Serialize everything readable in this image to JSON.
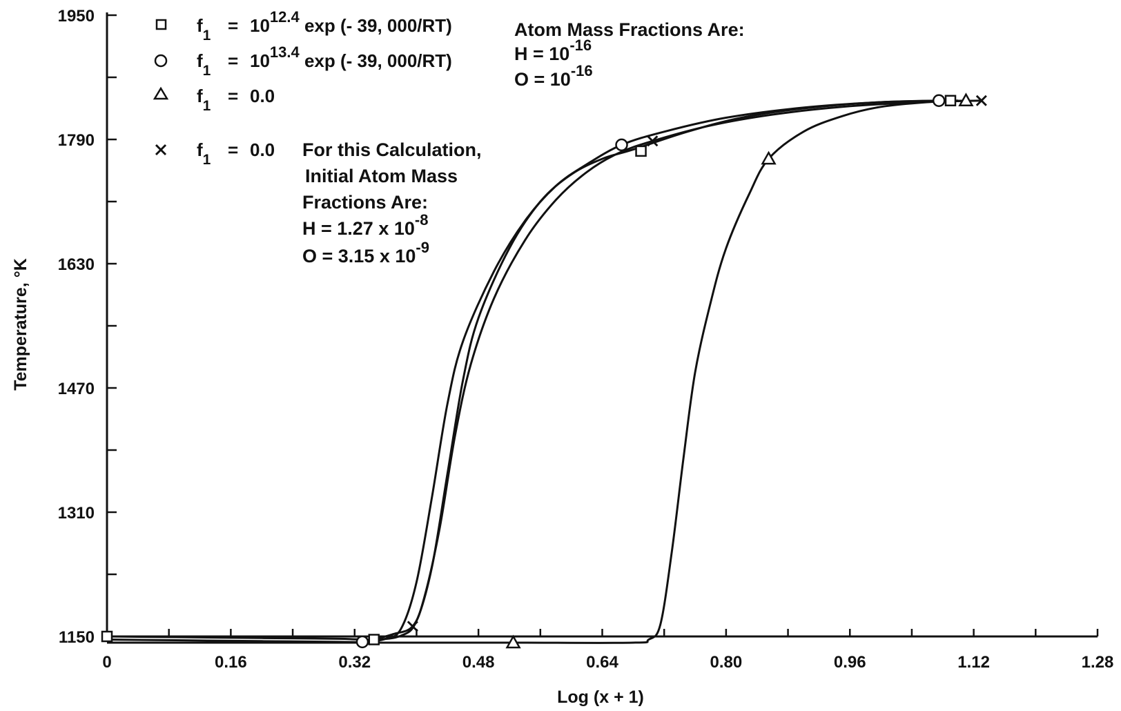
{
  "chart_data": {
    "type": "line",
    "xlabel": "Log (x + 1)",
    "ylabel": "Temperature, °K",
    "xlim": [
      0,
      1.28
    ],
    "ylim": [
      1150,
      1950
    ],
    "x_ticks": [
      0,
      0.16,
      0.32,
      0.48,
      0.64,
      0.8,
      0.96,
      1.12,
      1.28
    ],
    "x_tick_labels": [
      "0",
      "0.16",
      "0.32",
      "0.48",
      "0.64",
      "0.80",
      "0.96",
      "1.12",
      "1.28"
    ],
    "y_ticks": [
      1150,
      1310,
      1470,
      1630,
      1790,
      1950
    ],
    "y_tick_labels": [
      "1150",
      "1310",
      "1470",
      "1630",
      "1790",
      "1950"
    ],
    "y_minor_step": 80,
    "x_minor_step": 0.08,
    "grid": false,
    "legend": [
      {
        "marker": "square",
        "label": "f₁ = 10^12.4 exp (- 39, 000/RT)",
        "prefix": "f",
        "sub": "1",
        "eq": "=",
        "base": "10",
        "exp": "12.4",
        "tail": " exp (- 39, 000/RT)"
      },
      {
        "marker": "circle",
        "label": "f₁ = 10^13.4 exp (- 39, 000/RT)",
        "prefix": "f",
        "sub": "1",
        "eq": "=",
        "base": "10",
        "exp": "13.4",
        "tail": " exp (- 39, 000/RT)"
      },
      {
        "marker": "triangle",
        "label": "f₁ = 0.0",
        "prefix": "f",
        "sub": "1",
        "eq": "=",
        "base": "",
        "exp": "",
        "tail": "0.0"
      },
      {
        "marker": "x",
        "label": "f₁ = 0.0",
        "prefix": "f",
        "sub": "1",
        "eq": "=",
        "base": "",
        "exp": "",
        "tail": "0.0"
      }
    ],
    "note_calc": {
      "lines": [
        "For this Calculation,",
        "Initial Atom Mass",
        "Fractions Are:"
      ],
      "h_label": "H = 1.27 x 10",
      "h_exp": "-8",
      "o_label": "O = 3.15 x 10",
      "o_exp": "-9"
    },
    "note_atom": {
      "title": "Atom Mass Fractions Are:",
      "h_label": "H = 10",
      "h_exp": "-16",
      "o_label": "O = 10",
      "o_exp": "-16"
    },
    "series": [
      {
        "marker": "square",
        "points": [
          [
            0,
            1150
          ],
          [
            0.1,
            1149
          ],
          [
            0.2,
            1148
          ],
          [
            0.3,
            1147
          ],
          [
            0.345,
            1146
          ],
          [
            0.38,
            1151
          ],
          [
            0.4,
            1170
          ],
          [
            0.42,
            1240
          ],
          [
            0.44,
            1360
          ],
          [
            0.46,
            1480
          ],
          [
            0.48,
            1560
          ],
          [
            0.52,
            1650
          ],
          [
            0.56,
            1710
          ],
          [
            0.6,
            1745
          ],
          [
            0.64,
            1765
          ],
          [
            0.68,
            1777
          ],
          [
            0.75,
            1800
          ],
          [
            0.82,
            1818
          ],
          [
            0.9,
            1830
          ],
          [
            1.0,
            1838
          ],
          [
            1.1,
            1840
          ]
        ],
        "markers": [
          [
            0,
            1150
          ],
          [
            0.345,
            1146
          ],
          [
            0.69,
            1775
          ],
          [
            1.09,
            1840
          ]
        ]
      },
      {
        "marker": "circle",
        "points": [
          [
            0,
            1146
          ],
          [
            0.1,
            1145
          ],
          [
            0.2,
            1144
          ],
          [
            0.3,
            1143
          ],
          [
            0.33,
            1143
          ],
          [
            0.36,
            1147
          ],
          [
            0.38,
            1160
          ],
          [
            0.4,
            1220
          ],
          [
            0.42,
            1330
          ],
          [
            0.44,
            1450
          ],
          [
            0.46,
            1530
          ],
          [
            0.5,
            1620
          ],
          [
            0.54,
            1685
          ],
          [
            0.58,
            1730
          ],
          [
            0.62,
            1758
          ],
          [
            0.665,
            1783
          ],
          [
            0.72,
            1800
          ],
          [
            0.8,
            1818
          ],
          [
            0.9,
            1831
          ],
          [
            1.0,
            1838
          ],
          [
            1.075,
            1840
          ]
        ],
        "markers": [
          [
            0.33,
            1143
          ],
          [
            0.665,
            1783
          ],
          [
            1.075,
            1840
          ]
        ]
      },
      {
        "marker": "triangle",
        "points": [
          [
            0,
            1142
          ],
          [
            0.2,
            1142
          ],
          [
            0.4,
            1142
          ],
          [
            0.53,
            1142
          ],
          [
            0.68,
            1142
          ],
          [
            0.7,
            1146
          ],
          [
            0.715,
            1165
          ],
          [
            0.73,
            1260
          ],
          [
            0.745,
            1380
          ],
          [
            0.76,
            1490
          ],
          [
            0.78,
            1580
          ],
          [
            0.8,
            1650
          ],
          [
            0.83,
            1720
          ],
          [
            0.855,
            1765
          ],
          [
            0.9,
            1800
          ],
          [
            0.95,
            1820
          ],
          [
            1.0,
            1832
          ],
          [
            1.06,
            1838
          ],
          [
            1.11,
            1840
          ]
        ],
        "markers": [
          [
            0.525,
            1142
          ],
          [
            0.855,
            1765
          ],
          [
            1.11,
            1840
          ]
        ]
      },
      {
        "marker": "x",
        "points": [
          [
            0.345,
            1146
          ],
          [
            0.37,
            1153
          ],
          [
            0.395,
            1163
          ],
          [
            0.41,
            1200
          ],
          [
            0.43,
            1290
          ],
          [
            0.45,
            1410
          ],
          [
            0.47,
            1500
          ],
          [
            0.5,
            1585
          ],
          [
            0.54,
            1660
          ],
          [
            0.58,
            1712
          ],
          [
            0.62,
            1748
          ],
          [
            0.66,
            1772
          ],
          [
            0.705,
            1788
          ],
          [
            0.78,
            1808
          ],
          [
            0.86,
            1822
          ],
          [
            0.95,
            1832
          ],
          [
            1.05,
            1838
          ],
          [
            1.13,
            1840
          ]
        ],
        "markers": [
          [
            0.395,
            1163
          ],
          [
            0.705,
            1788
          ],
          [
            1.13,
            1840
          ]
        ]
      }
    ]
  }
}
